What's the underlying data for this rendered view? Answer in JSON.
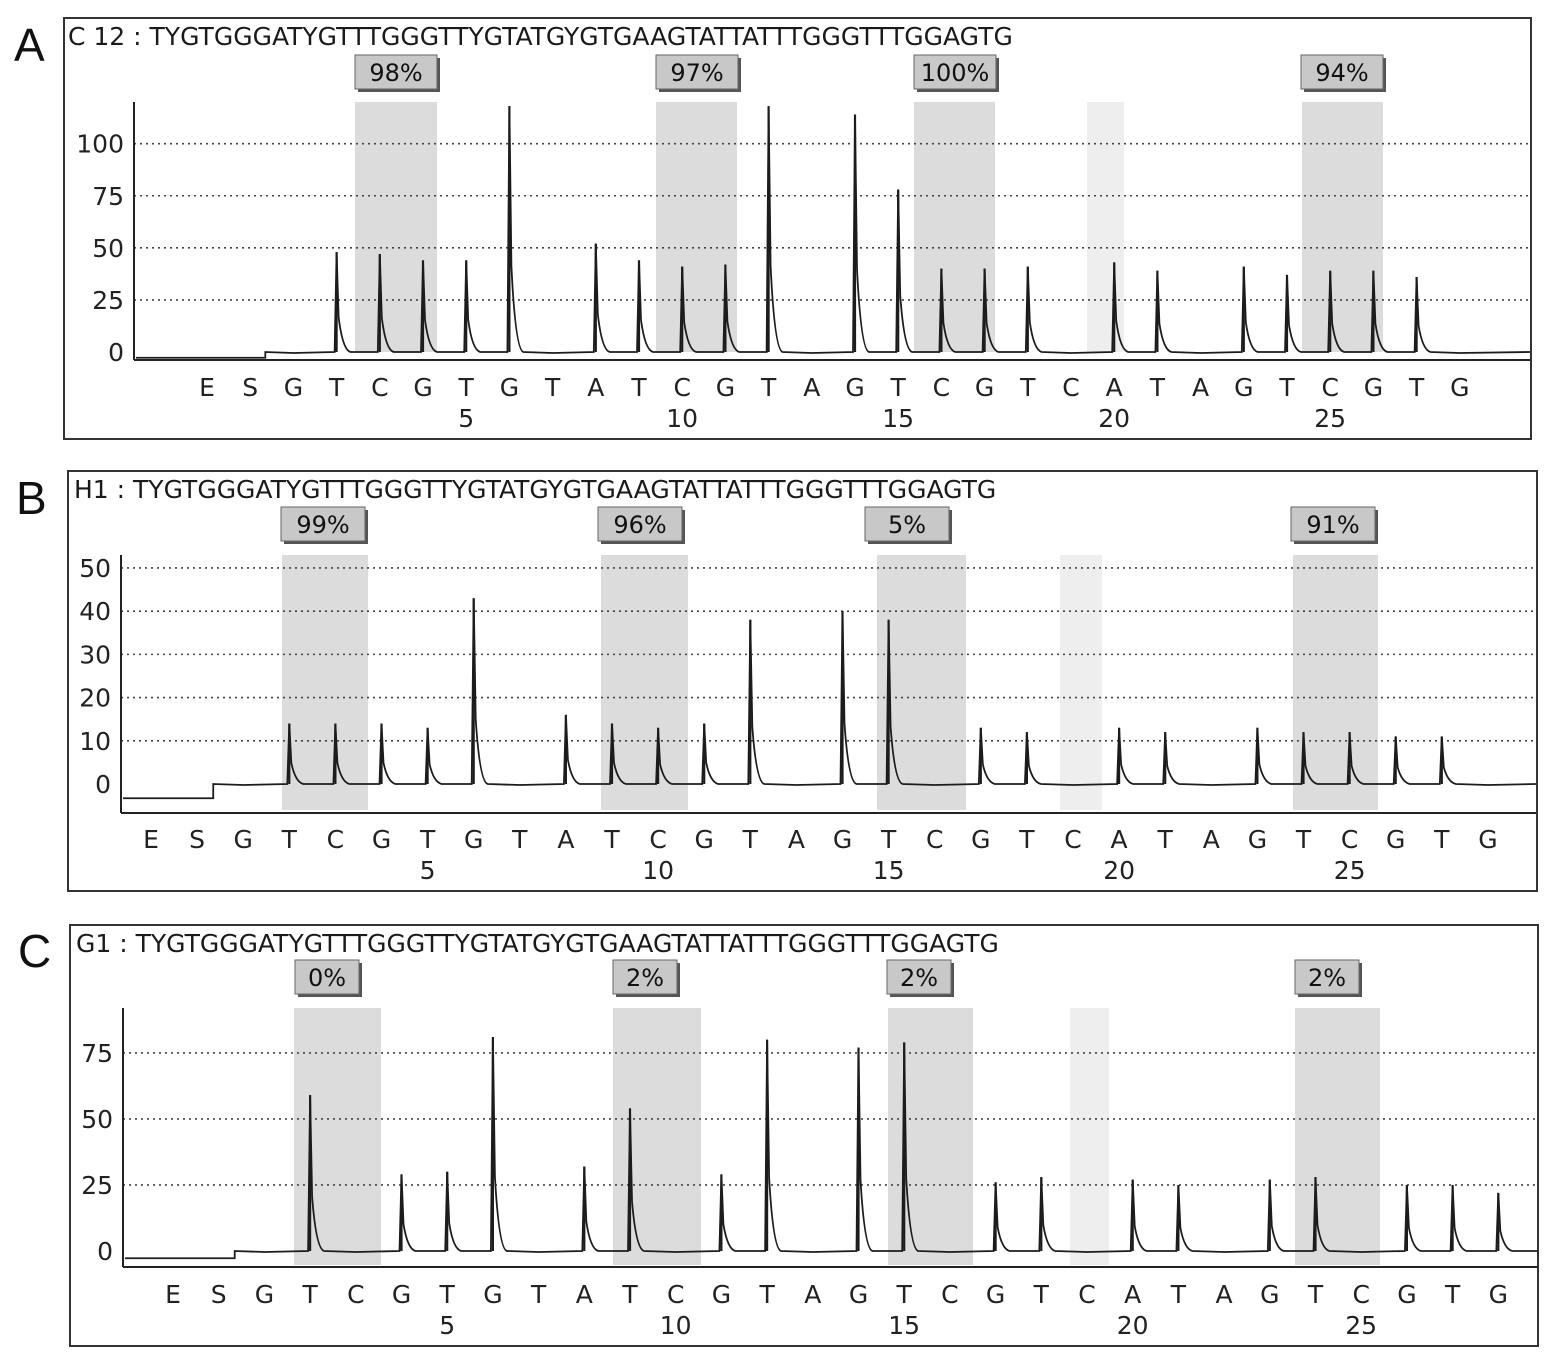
{
  "figure": {
    "panels": [
      {
        "letter": "A",
        "header": "C 12 : TYGTGGGATYGTTTGGGTTYGTATGYGTGAAGTATTATTTGGGTTTGGAGTG",
        "badges": [
          "98%",
          "97%",
          "100%",
          "94%"
        ]
      },
      {
        "letter": "B",
        "header": "H1 : TYGTGGGATYGTTTGGGTTYGTATGYGTGAAGTATTATTTGGGTTTGGAGTG",
        "badges": [
          "99%",
          "96%",
          "5%",
          "91%"
        ]
      },
      {
        "letter": "C",
        "header": "G1 : TYGTGGGATYGTTTGGGTTYGTATGYGTGAAGTATTATTTGGGTTTGGAGTG",
        "badges": [
          "0%",
          "2%",
          "2%",
          "2%"
        ]
      }
    ]
  },
  "chart_data": [
    {
      "type": "line",
      "chart_kind": "pyrogram",
      "grid": "horizontal dotted",
      "dispensation": [
        "E",
        "S",
        "G",
        "T",
        "C",
        "G",
        "T",
        "G",
        "T",
        "A",
        "T",
        "C",
        "G",
        "T",
        "A",
        "G",
        "T",
        "C",
        "G",
        "T",
        "C",
        "A",
        "T",
        "A",
        "G",
        "T",
        "C",
        "G",
        "T",
        "G"
      ],
      "position_ticks": [
        5,
        10,
        15,
        20,
        25
      ],
      "yticks": [
        0,
        25,
        50,
        75,
        100
      ],
      "ylim": [
        -5,
        120
      ],
      "values": [
        0,
        1,
        0,
        48,
        47,
        44,
        44,
        118,
        0,
        52,
        44,
        41,
        42,
        118,
        0,
        114,
        78,
        40,
        40,
        41,
        0,
        43,
        39,
        0,
        41,
        37,
        39,
        39,
        36,
        0
      ],
      "cpg_sites": [
        "98%",
        "97%",
        "100%",
        "94%"
      ]
    },
    {
      "type": "line",
      "chart_kind": "pyrogram",
      "grid": "horizontal dotted",
      "dispensation": [
        "E",
        "S",
        "G",
        "T",
        "C",
        "G",
        "T",
        "G",
        "T",
        "A",
        "T",
        "C",
        "G",
        "T",
        "A",
        "G",
        "T",
        "C",
        "G",
        "T",
        "C",
        "A",
        "T",
        "A",
        "G",
        "T",
        "C",
        "G",
        "T",
        "G"
      ],
      "position_ticks": [
        5,
        10,
        15,
        20,
        25
      ],
      "yticks": [
        0,
        10,
        20,
        30,
        40,
        50
      ],
      "ylim": [
        -6,
        53
      ],
      "values": [
        0,
        0,
        0,
        14,
        14,
        14,
        13,
        43,
        0,
        16,
        14,
        13,
        14,
        38,
        0,
        40,
        38,
        0,
        13,
        12,
        0,
        13,
        12,
        0,
        13,
        12,
        12,
        11,
        11,
        0
      ],
      "cpg_sites": [
        "99%",
        "96%",
        "5%",
        "91%"
      ]
    },
    {
      "type": "line",
      "chart_kind": "pyrogram",
      "grid": "horizontal dotted",
      "dispensation": [
        "E",
        "S",
        "G",
        "T",
        "C",
        "G",
        "T",
        "G",
        "T",
        "A",
        "T",
        "C",
        "G",
        "T",
        "A",
        "G",
        "T",
        "C",
        "G",
        "T",
        "C",
        "A",
        "T",
        "A",
        "G",
        "T",
        "C",
        "G",
        "T",
        "G"
      ],
      "position_ticks": [
        5,
        10,
        15,
        20,
        25
      ],
      "yticks": [
        0,
        25,
        50,
        75
      ],
      "ylim": [
        -5,
        92
      ],
      "values": [
        0,
        0,
        0,
        59,
        0,
        29,
        30,
        81,
        0,
        32,
        54,
        0,
        29,
        80,
        0,
        77,
        79,
        0,
        26,
        28,
        0,
        27,
        25,
        0,
        27,
        28,
        0,
        25,
        25,
        22
      ],
      "cpg_sites": [
        "0%",
        "2%",
        "2%",
        "2%"
      ]
    }
  ]
}
